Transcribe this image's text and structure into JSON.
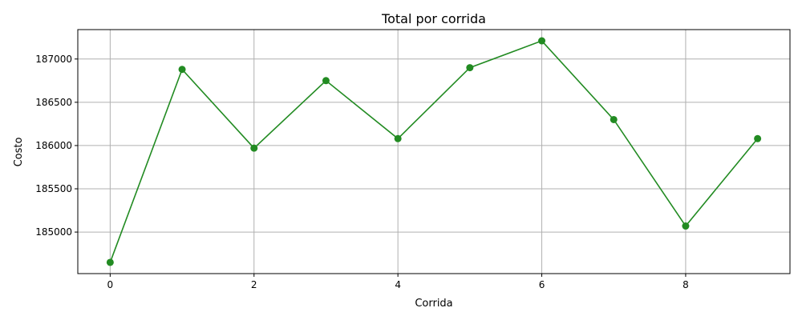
{
  "chart_data": {
    "type": "line",
    "title": "Total por corrida",
    "xlabel": "Corrida",
    "ylabel": "Costo",
    "x": [
      0,
      1,
      2,
      3,
      4,
      5,
      6,
      7,
      8,
      9
    ],
    "series": [
      {
        "values": [
          184650,
          186880,
          185970,
          186750,
          186080,
          186900,
          187210,
          186300,
          185070,
          186080
        ],
        "color": "#228b22",
        "marker": "circle"
      }
    ],
    "xticks": [
      0,
      2,
      4,
      6,
      8
    ],
    "yticks": [
      185000,
      185500,
      186000,
      186500,
      187000
    ],
    "xlim": [
      -0.45,
      9.45
    ],
    "ylim": [
      184520,
      187340
    ],
    "grid": true,
    "legend": "none"
  }
}
